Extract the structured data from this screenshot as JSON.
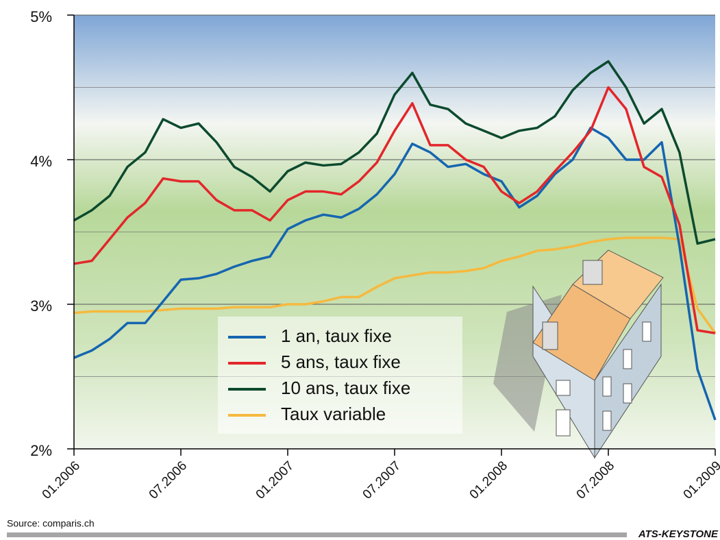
{
  "chart_data": {
    "type": "line",
    "x": [
      2006,
      2006.083,
      2006.167,
      2006.25,
      2006.333,
      2006.417,
      2006.5,
      2006.583,
      2006.667,
      2006.75,
      2006.833,
      2006.917,
      2007,
      2007.083,
      2007.167,
      2007.25,
      2007.333,
      2007.417,
      2007.5,
      2007.583,
      2007.667,
      2007.75,
      2007.833,
      2007.917,
      2008,
      2008.083,
      2008.167,
      2008.25,
      2008.333,
      2008.417,
      2008.5,
      2008.583,
      2008.667,
      2008.75,
      2008.833,
      2008.917,
      2009
    ],
    "xlim": [
      2006,
      2009
    ],
    "xticks": [
      {
        "value": 2006,
        "label": "01.2006"
      },
      {
        "value": 2006.5,
        "label": "07.2006"
      },
      {
        "value": 2007,
        "label": "01.2007"
      },
      {
        "value": 2007.5,
        "label": "07.2007"
      },
      {
        "value": 2008,
        "label": "01.2008"
      },
      {
        "value": 2008.5,
        "label": "07.2008"
      },
      {
        "value": 2009,
        "label": "01.2009"
      }
    ],
    "ylim": [
      2,
      5
    ],
    "yticks": [
      {
        "value": 2,
        "label": "2%"
      },
      {
        "value": 3,
        "label": "3%"
      },
      {
        "value": 4,
        "label": "4%"
      },
      {
        "value": 5,
        "label": "5%"
      }
    ],
    "minor_yticks": [
      2.5,
      3.5,
      4.5
    ],
    "grid": true,
    "series": [
      {
        "name": "1 an, taux fixe",
        "color": "#1565b0",
        "values": [
          2.63,
          2.68,
          2.76,
          2.87,
          2.87,
          3.02,
          3.17,
          3.18,
          3.21,
          3.26,
          3.3,
          3.33,
          3.52,
          3.58,
          3.62,
          3.6,
          3.66,
          3.76,
          3.9,
          4.11,
          4.05,
          3.95,
          3.97,
          3.9,
          3.85,
          3.67,
          3.75,
          3.9,
          4.0,
          4.22,
          4.15,
          4.0,
          4.0,
          4.12,
          3.4,
          2.55,
          2.2
        ]
      },
      {
        "name": "5 ans, taux fixe",
        "color": "#e3262a",
        "values": [
          3.28,
          3.3,
          3.45,
          3.6,
          3.7,
          3.87,
          3.85,
          3.85,
          3.72,
          3.65,
          3.65,
          3.58,
          3.72,
          3.78,
          3.78,
          3.76,
          3.85,
          3.98,
          4.2,
          4.39,
          4.1,
          4.1,
          4.0,
          3.95,
          3.78,
          3.7,
          3.78,
          3.92,
          4.05,
          4.2,
          4.5,
          4.35,
          3.95,
          3.88,
          3.55,
          2.82,
          2.8
        ]
      },
      {
        "name": "10 ans, taux fixe",
        "color": "#0c4a2e",
        "values": [
          3.58,
          3.65,
          3.75,
          3.95,
          4.05,
          4.28,
          4.22,
          4.25,
          4.12,
          3.95,
          3.88,
          3.78,
          3.92,
          3.98,
          3.96,
          3.97,
          4.05,
          4.18,
          4.45,
          4.6,
          4.38,
          4.35,
          4.25,
          4.2,
          4.15,
          4.2,
          4.22,
          4.3,
          4.48,
          4.6,
          4.68,
          4.5,
          4.25,
          4.35,
          4.05,
          3.42,
          3.45
        ]
      },
      {
        "name": "Taux variable",
        "color": "#f6b93f",
        "values": [
          2.94,
          2.95,
          2.95,
          2.95,
          2.95,
          2.96,
          2.97,
          2.97,
          2.97,
          2.98,
          2.98,
          2.98,
          3.0,
          3.0,
          3.02,
          3.05,
          3.05,
          3.12,
          3.18,
          3.2,
          3.22,
          3.22,
          3.23,
          3.25,
          3.3,
          3.33,
          3.37,
          3.38,
          3.4,
          3.43,
          3.45,
          3.46,
          3.46,
          3.46,
          3.45,
          2.97,
          2.8
        ]
      }
    ],
    "source": "Source: comparis.ch",
    "credit": "ATS-KEYSTONE"
  }
}
